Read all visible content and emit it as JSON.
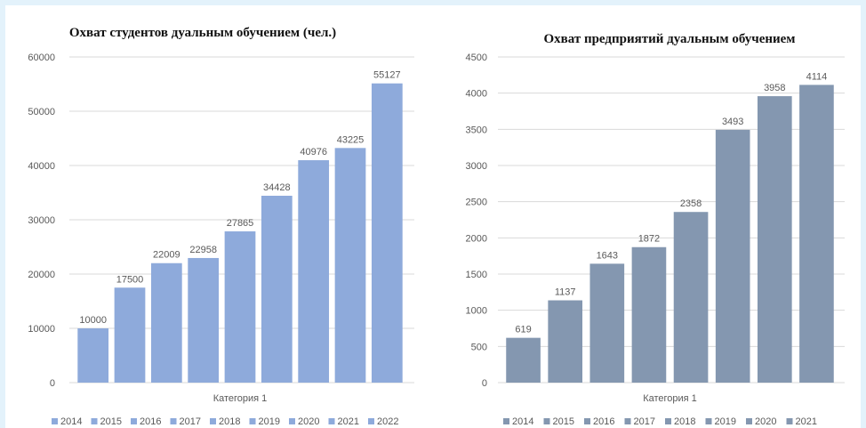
{
  "chart_data": [
    {
      "type": "bar",
      "title": "Охват студентов дуальным обучением (чел.)",
      "xlabel": "",
      "ylabel": "",
      "categories": [
        "Категория 1"
      ],
      "series": [
        {
          "name": "2014",
          "values": [
            10000
          ]
        },
        {
          "name": "2015",
          "values": [
            17500
          ]
        },
        {
          "name": "2016",
          "values": [
            22009
          ]
        },
        {
          "name": "2017",
          "values": [
            22958
          ]
        },
        {
          "name": "2018",
          "values": [
            27865
          ]
        },
        {
          "name": "2019",
          "values": [
            34428
          ]
        },
        {
          "name": "2020",
          "values": [
            40976
          ]
        },
        {
          "name": "2021",
          "values": [
            43225
          ]
        },
        {
          "name": "2022",
          "values": [
            55127
          ]
        }
      ],
      "ylim": [
        0,
        60000
      ],
      "yticks": [
        0,
        10000,
        20000,
        30000,
        40000,
        50000,
        60000
      ],
      "grid": true,
      "legend": "bottom",
      "bar_color": "#8eaadb"
    },
    {
      "type": "bar",
      "title": "Охват предприятий дуальным обучением",
      "xlabel": "",
      "ylabel": "",
      "categories": [
        "Категория 1"
      ],
      "series": [
        {
          "name": "2014",
          "values": [
            619
          ]
        },
        {
          "name": "2015",
          "values": [
            1137
          ]
        },
        {
          "name": "2016",
          "values": [
            1643
          ]
        },
        {
          "name": "2017",
          "values": [
            1872
          ]
        },
        {
          "name": "2018",
          "values": [
            2358
          ]
        },
        {
          "name": "2019",
          "values": [
            3493
          ]
        },
        {
          "name": "2020",
          "values": [
            3958
          ]
        },
        {
          "name": "2021",
          "values": [
            4114
          ]
        }
      ],
      "ylim": [
        0,
        4500
      ],
      "yticks": [
        0,
        500,
        1000,
        1500,
        2000,
        2500,
        3000,
        3500,
        4000,
        4500
      ],
      "grid": true,
      "legend": "bottom",
      "bar_color": "#8497b0"
    }
  ]
}
